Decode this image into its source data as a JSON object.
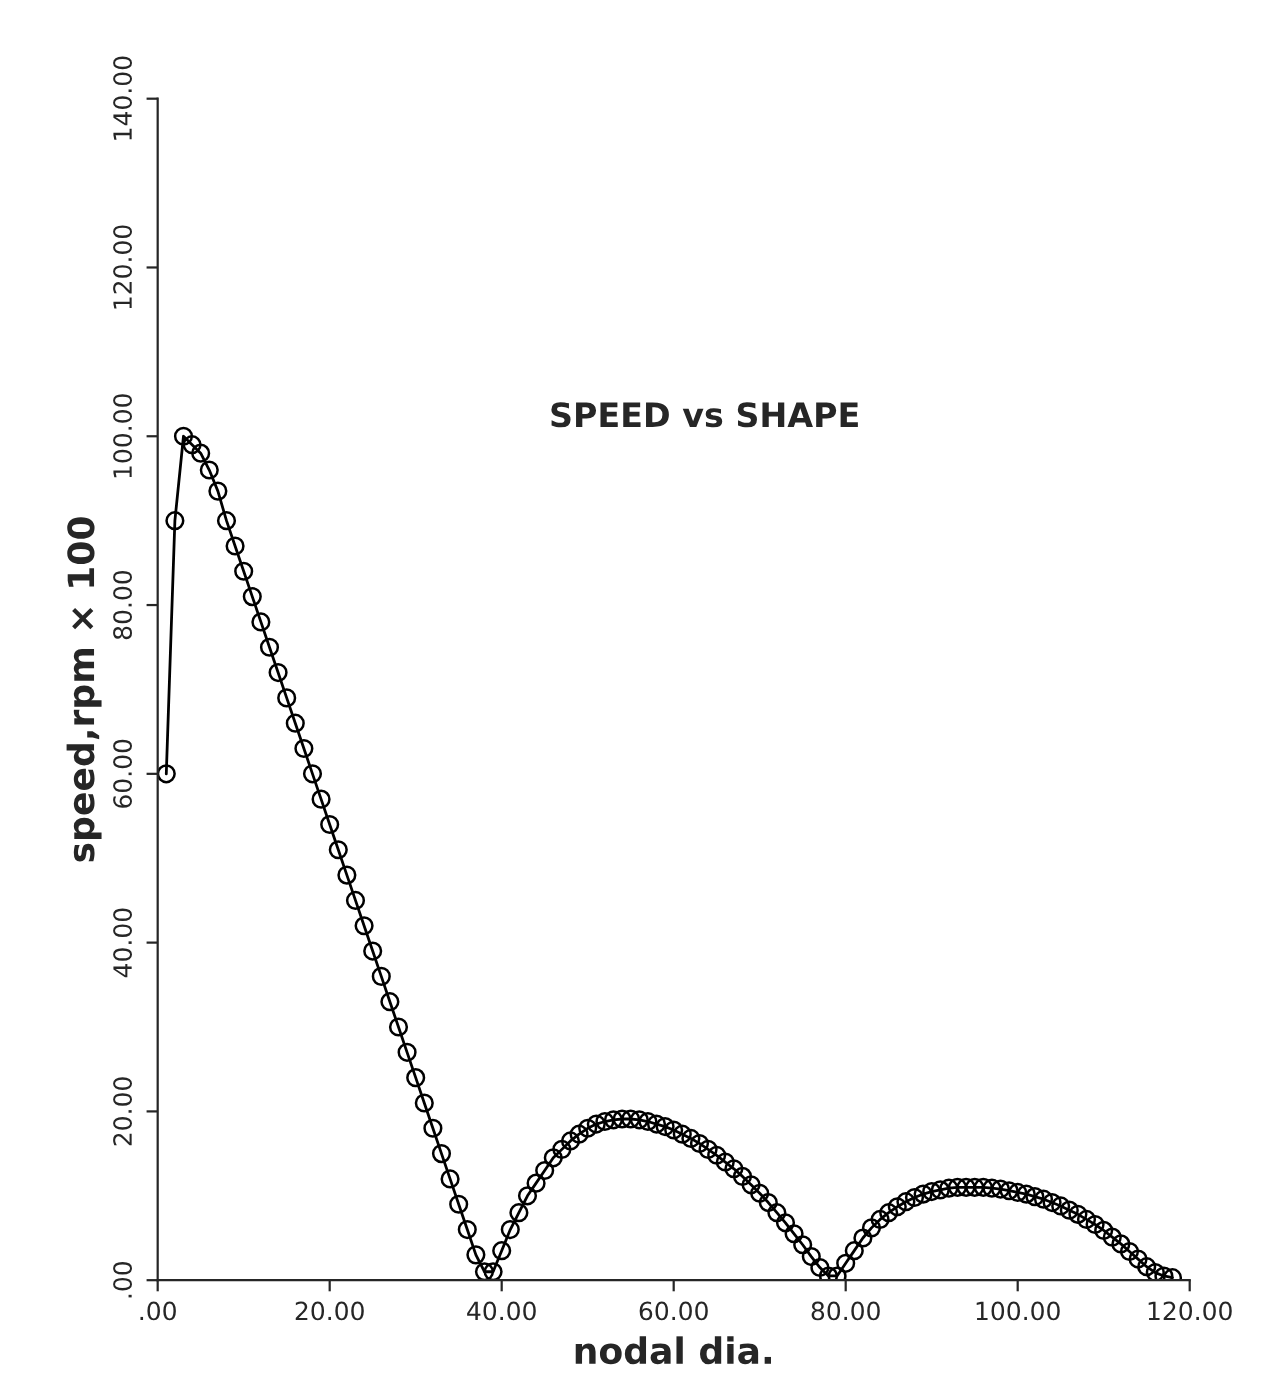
{
  "chart_data": {
    "type": "line",
    "title": "SPEED vs SHAPE",
    "xlabel": "nodal dia.",
    "ylabel": "speed,rpm × 100",
    "x": [
      1,
      2,
      3,
      4,
      5,
      6,
      7,
      8,
      9,
      10,
      11,
      12,
      13,
      14,
      15,
      16,
      17,
      18,
      19,
      20,
      21,
      22,
      23,
      24,
      25,
      26,
      27,
      28,
      29,
      30,
      31,
      32,
      33,
      34,
      35,
      36,
      37,
      38,
      39,
      40,
      41,
      42,
      43,
      44,
      45,
      46,
      47,
      48,
      49,
      50,
      51,
      52,
      53,
      54,
      55,
      56,
      57,
      58,
      59,
      60,
      61,
      62,
      63,
      64,
      65,
      66,
      67,
      68,
      69,
      70,
      71,
      72,
      73,
      74,
      75,
      76,
      77,
      78,
      79,
      80,
      81,
      82,
      83,
      84,
      85,
      86,
      87,
      88,
      89,
      90,
      91,
      92,
      93,
      94,
      95,
      96,
      97,
      98,
      99,
      100,
      101,
      102,
      103,
      104,
      105,
      106,
      107,
      108,
      109,
      110,
      111,
      112,
      113,
      114,
      115,
      116,
      117,
      118
    ],
    "series": [
      {
        "color": "#000000",
        "values": [
          60,
          90,
          100,
          99,
          98,
          96,
          93.5,
          90,
          87,
          84,
          81,
          78,
          75,
          72,
          69,
          66,
          63,
          60,
          57,
          54,
          51,
          48,
          45,
          42,
          39,
          36,
          33,
          30,
          27,
          24,
          21,
          18,
          15,
          12,
          9,
          6,
          3,
          1,
          1,
          3.5,
          6,
          8,
          10,
          11.5,
          13,
          14.5,
          15.5,
          16.5,
          17.3,
          18,
          18.5,
          18.8,
          19,
          19.1,
          19.1,
          19,
          18.8,
          18.5,
          18.2,
          17.8,
          17.3,
          16.8,
          16.2,
          15.5,
          14.8,
          14,
          13.2,
          12.3,
          11.3,
          10.3,
          9.2,
          8,
          6.8,
          5.5,
          4.2,
          2.8,
          1.5,
          0.5,
          0.5,
          2,
          3.5,
          5,
          6.2,
          7.2,
          8,
          8.7,
          9.3,
          9.8,
          10.2,
          10.5,
          10.7,
          10.9,
          11,
          11,
          11,
          11,
          10.9,
          10.8,
          10.6,
          10.4,
          10.2,
          9.9,
          9.6,
          9.2,
          8.8,
          8.3,
          7.8,
          7.2,
          6.6,
          5.9,
          5.1,
          4.3,
          3.4,
          2.5,
          1.6,
          0.9,
          0.5,
          0.3
        ]
      }
    ],
    "xlim": [
      0,
      120
    ],
    "ylim": [
      0,
      140
    ],
    "xticks": [
      {
        "value": 0,
        "label": ".00"
      },
      {
        "value": 20,
        "label": "20.00"
      },
      {
        "value": 40,
        "label": "40.00"
      },
      {
        "value": 60,
        "label": "60.00"
      },
      {
        "value": 80,
        "label": "80.00"
      },
      {
        "value": 100,
        "label": "100.00"
      },
      {
        "value": 120,
        "label": "120.00"
      }
    ],
    "yticks": [
      {
        "value": 0,
        "label": ".00"
      },
      {
        "value": 20,
        "label": "20.00"
      },
      {
        "value": 40,
        "label": "40.00"
      },
      {
        "value": 60,
        "label": "60.00"
      },
      {
        "value": 80,
        "label": "80.00"
      },
      {
        "value": 100,
        "label": "100.00"
      },
      {
        "value": 120,
        "label": "120.00"
      },
      {
        "value": 140,
        "label": "140.00"
      }
    ],
    "marker": "circle",
    "line_style": "solid",
    "grid": false,
    "legend": false
  }
}
